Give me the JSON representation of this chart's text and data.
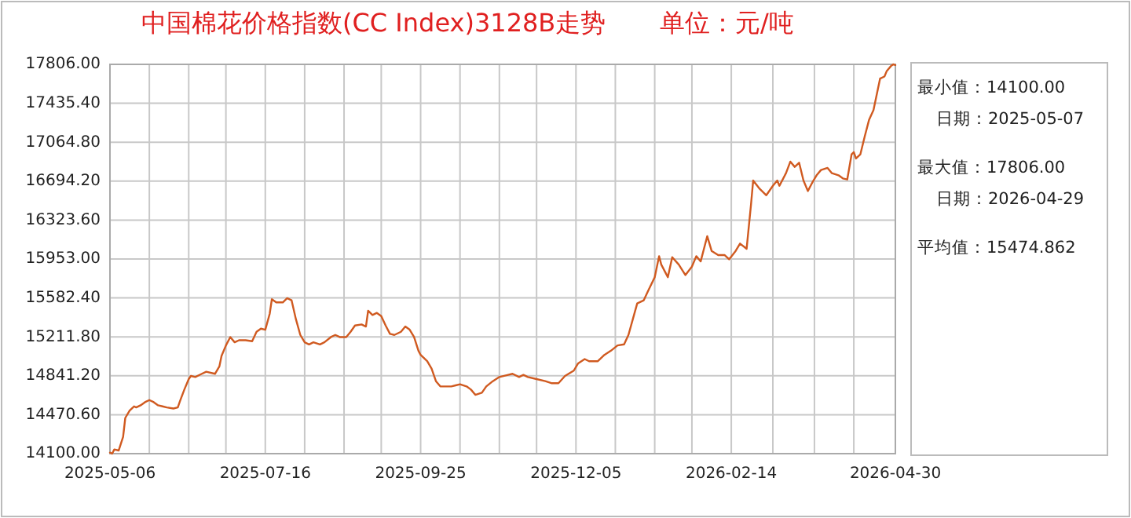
{
  "chart_data": {
    "type": "line",
    "title": "中国棉花价格指数(CC Index)3128B走势",
    "subtitle": "单位：元/吨",
    "annotations": [
      "最小值：14100.00",
      "日期：2025-05-07",
      "最大值：17806.00",
      "日期：2026-04-29",
      "平均值：15474.862"
    ],
    "x": [
      "2025-05-06",
      "2025-05-07",
      "2025-05-08",
      "2025-05-10",
      "2025-05-12",
      "2025-05-13",
      "2025-05-15",
      "2025-05-17",
      "2025-05-18",
      "2025-05-20",
      "2025-05-22",
      "2025-05-24",
      "2025-05-26",
      "2025-05-28",
      "2025-05-30",
      "2025-06-01",
      "2025-06-04",
      "2025-06-06",
      "2025-06-07",
      "2025-06-09",
      "2025-06-11",
      "2025-06-12",
      "2025-06-14",
      "2025-06-17",
      "2025-06-19",
      "2025-06-23",
      "2025-06-25",
      "2025-06-26",
      "2025-06-28",
      "2025-06-30",
      "2025-07-02",
      "2025-07-04",
      "2025-07-07",
      "2025-07-10",
      "2025-07-12",
      "2025-07-14",
      "2025-07-16",
      "2025-07-18",
      "2025-07-19",
      "2025-07-21",
      "2025-07-24",
      "2025-07-26",
      "2025-07-28",
      "2025-07-30",
      "2025-08-01",
      "2025-08-03",
      "2025-08-05",
      "2025-08-07",
      "2025-08-10",
      "2025-08-12",
      "2025-08-15",
      "2025-08-17",
      "2025-08-19",
      "2025-08-22",
      "2025-08-24",
      "2025-08-26",
      "2025-08-29",
      "2025-08-31",
      "2025-09-01",
      "2025-09-03",
      "2025-09-05",
      "2025-09-07",
      "2025-09-09",
      "2025-09-11",
      "2025-09-13",
      "2025-09-16",
      "2025-09-18",
      "2025-09-20",
      "2025-09-22",
      "2025-09-24",
      "2025-09-25",
      "2025-09-28",
      "2025-09-30",
      "2025-10-02",
      "2025-10-04",
      "2025-10-06",
      "2025-10-09",
      "2025-10-11",
      "2025-10-13",
      "2025-10-16",
      "2025-10-18",
      "2025-10-20",
      "2025-10-23",
      "2025-10-25",
      "2025-10-28",
      "2025-10-31",
      "2025-11-04",
      "2025-11-06",
      "2025-11-09",
      "2025-11-11",
      "2025-11-13",
      "2025-11-17",
      "2025-11-21",
      "2025-11-24",
      "2025-11-27",
      "2025-11-30",
      "2025-12-04",
      "2025-12-06",
      "2025-12-09",
      "2025-12-11",
      "2025-12-15",
      "2025-12-18",
      "2025-12-21",
      "2025-12-24",
      "2025-12-27",
      "2025-12-29",
      "2025-12-31",
      "2026-01-02",
      "2026-01-05",
      "2026-01-07",
      "2026-01-10",
      "2026-01-12",
      "2026-01-13",
      "2026-01-16",
      "2026-01-18",
      "2026-01-21",
      "2026-01-24",
      "2026-01-27",
      "2026-01-29",
      "2026-01-31",
      "2026-02-03",
      "2026-02-05",
      "2026-02-08",
      "2026-02-11",
      "2026-02-13",
      "2026-02-16",
      "2026-02-18",
      "2026-02-21",
      "2026-02-23",
      "2026-02-24",
      "2026-02-27",
      "2026-03-02",
      "2026-03-05",
      "2026-03-07",
      "2026-03-08",
      "2026-03-11",
      "2026-03-13",
      "2026-03-15",
      "2026-03-17",
      "2026-03-19",
      "2026-03-21",
      "2026-03-23",
      "2026-03-25",
      "2026-03-27",
      "2026-03-30",
      "2026-04-01",
      "2026-04-04",
      "2026-04-06",
      "2026-04-08",
      "2026-04-10",
      "2026-04-11",
      "2026-04-12",
      "2026-04-14",
      "2026-04-16",
      "2026-04-18",
      "2026-04-20",
      "2026-04-22",
      "2026-04-23",
      "2026-04-25",
      "2026-04-26",
      "2026-04-28",
      "2026-04-29",
      "2026-04-30"
    ],
    "series": [
      {
        "color": "#d05a20",
        "values": [
          14110,
          14100,
          14140,
          14130,
          14260,
          14440,
          14510,
          14550,
          14540,
          14560,
          14590,
          14610,
          14590,
          14560,
          14550,
          14540,
          14530,
          14540,
          14600,
          14710,
          14810,
          14840,
          14830,
          14860,
          14880,
          14860,
          14930,
          15030,
          15130,
          15210,
          15160,
          15180,
          15180,
          15170,
          15260,
          15290,
          15280,
          15430,
          15570,
          15540,
          15540,
          15580,
          15560,
          15380,
          15230,
          15160,
          15140,
          15160,
          15140,
          15160,
          15210,
          15230,
          15210,
          15210,
          15260,
          15320,
          15330,
          15310,
          15460,
          15420,
          15440,
          15410,
          15320,
          15240,
          15230,
          15260,
          15310,
          15280,
          15210,
          15080,
          15040,
          14980,
          14910,
          14790,
          14740,
          14740,
          14740,
          14750,
          14760,
          14740,
          14710,
          14660,
          14680,
          14740,
          14790,
          14830,
          14850,
          14860,
          14830,
          14850,
          14830,
          14810,
          14790,
          14770,
          14770,
          14840,
          14890,
          14960,
          15000,
          14980,
          14980,
          15040,
          15080,
          15130,
          15140,
          15230,
          15380,
          15530,
          15560,
          15650,
          15780,
          15980,
          15900,
          15780,
          15970,
          15900,
          15800,
          15880,
          15980,
          15930,
          16170,
          16030,
          15990,
          15990,
          15950,
          16030,
          16100,
          16050,
          16470,
          16700,
          16620,
          16560,
          16650,
          16700,
          16650,
          16770,
          16880,
          16830,
          16870,
          16700,
          16600,
          16680,
          16750,
          16800,
          16820,
          16770,
          16750,
          16720,
          16710,
          16950,
          16970,
          16910,
          16950,
          17120,
          17280,
          17370,
          17570,
          17670,
          17690,
          17740,
          17790,
          17806,
          17800
        ]
      }
    ],
    "xlim": [
      "2025-05-06",
      "2026-04-30"
    ],
    "xticks": [
      {
        "value": "2025-05-06",
        "label": "2025-05-06"
      },
      {
        "value": "2025-05-24",
        "label": null
      },
      {
        "value": "2025-06-11",
        "label": null
      },
      {
        "value": "2025-06-28",
        "label": null
      },
      {
        "value": "2025-07-16",
        "label": "2025-07-16"
      },
      {
        "value": "2025-08-03",
        "label": null
      },
      {
        "value": "2025-08-21",
        "label": null
      },
      {
        "value": "2025-09-07",
        "label": null
      },
      {
        "value": "2025-09-25",
        "label": "2025-09-25"
      },
      {
        "value": "2025-10-13",
        "label": null
      },
      {
        "value": "2025-10-31",
        "label": null
      },
      {
        "value": "2025-11-17",
        "label": null
      },
      {
        "value": "2025-12-05",
        "label": "2025-12-05"
      },
      {
        "value": "2025-12-23",
        "label": null
      },
      {
        "value": "2026-01-10",
        "label": null
      },
      {
        "value": "2026-01-27",
        "label": null
      },
      {
        "value": "2026-02-14",
        "label": "2026-02-14"
      },
      {
        "value": "2026-03-05",
        "label": null
      },
      {
        "value": "2026-03-24",
        "label": null
      },
      {
        "value": "2026-04-11",
        "label": null
      },
      {
        "value": "2026-04-30",
        "label": "2026-04-30"
      }
    ],
    "ylim": [
      14100,
      17806
    ],
    "yticks": [
      {
        "value": 14100,
        "label": "14100.00"
      },
      {
        "value": 14470.6,
        "label": "14470.60"
      },
      {
        "value": 14841.2,
        "label": "14841.20"
      },
      {
        "value": 15211.8,
        "label": "15211.80"
      },
      {
        "value": 15582.4,
        "label": "15582.40"
      },
      {
        "value": 15953,
        "label": "15953.00"
      },
      {
        "value": 16323.6,
        "label": "16323.60"
      },
      {
        "value": 16694.2,
        "label": "16694.20"
      },
      {
        "value": 17064.8,
        "label": "17064.80"
      },
      {
        "value": 17435.4,
        "label": "17435.40"
      },
      {
        "value": 17806,
        "label": "17806.00"
      }
    ],
    "grid": true
  }
}
